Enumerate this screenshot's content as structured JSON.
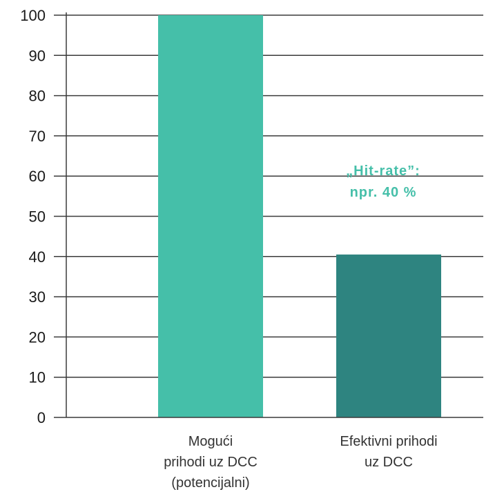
{
  "chart_data": {
    "type": "bar",
    "title": "",
    "xlabel": "",
    "ylabel": "",
    "ylim": [
      0,
      100
    ],
    "yticks": [
      0,
      10,
      20,
      30,
      40,
      50,
      60,
      70,
      80,
      90,
      100
    ],
    "categories": [
      [
        "Mogući",
        "prihodi uz DCC",
        "(potencijalni)"
      ],
      [
        "Efektivni prihodi",
        "uz DCC"
      ]
    ],
    "values": [
      100,
      40.5
    ],
    "bar_colors": [
      "#45bfa9",
      "#2e8480"
    ],
    "grid": true,
    "annotation": {
      "lines": [
        "„Hit-rate”:",
        "npr. 40 %"
      ],
      "color": "#45bfa9"
    }
  }
}
